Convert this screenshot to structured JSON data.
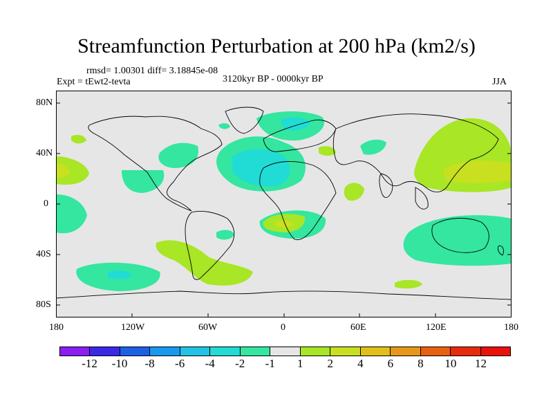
{
  "title": "Streamfunction Perturbation at 200 hPa (km2/s)",
  "stats": "rmsd= 1.00301 diff= 3.18845e-08",
  "experiment": "Expt = tEwt2-tevta",
  "period": "3120kyr BP - 0000kyr BP",
  "season": "JJA",
  "y_axis_labels": [
    "80N",
    "40N",
    "0",
    "40S",
    "80S"
  ],
  "x_axis_labels": [
    "180",
    "120W",
    "60W",
    "0",
    "60E",
    "120E",
    "180"
  ],
  "colorbar": {
    "labels": [
      "-12",
      "-10",
      "-8",
      "-6",
      "-4",
      "-2",
      "-1",
      "1",
      "2",
      "4",
      "6",
      "8",
      "10",
      "12"
    ],
    "colors": [
      "#8a1ff0",
      "#3a2ae8",
      "#1c60e6",
      "#1898ee",
      "#22c2e6",
      "#20dcd4",
      "#34e6a0",
      "#e6e6e6",
      "#a8e626",
      "#c8e020",
      "#e0c018",
      "#e89818",
      "#e86012",
      "#e82a0e",
      "#e8120a"
    ]
  },
  "colors": {
    "ocean_land_bg": "#e6e6e6",
    "neg1": "#34e6a0",
    "neg2": "#20dcd4",
    "pos1": "#a8e626",
    "pos2": "#c8e020"
  }
}
